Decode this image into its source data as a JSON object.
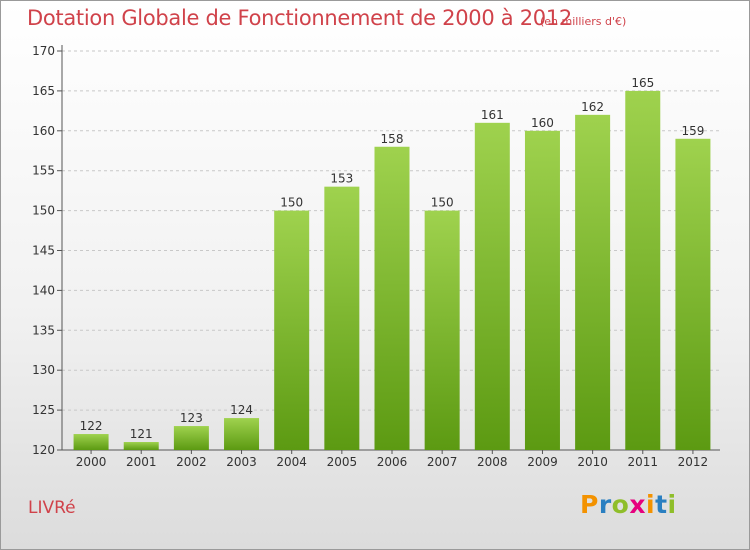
{
  "header": {
    "title": "Dotation Globale de Fonctionnement de 2000 à 2012",
    "unit": "(en milliers d'€)"
  },
  "commune": "LIVRé",
  "logo": {
    "letters": [
      "P",
      "r",
      "o",
      "x",
      "i",
      "t",
      "i"
    ],
    "colors": [
      "#f39200",
      "#2a7fc1",
      "#8fbe2a",
      "#e6007e",
      "#f39200",
      "#2a7fc1",
      "#8fbe2a"
    ]
  },
  "colors": {
    "bar_top": "#9fd24e",
    "bar_bottom": "#5c9a12",
    "accent_text": "#d0424a",
    "grid": "#c8c8c8"
  },
  "chart_data": {
    "type": "bar",
    "title": "Dotation Globale de Fonctionnement de 2000 à 2012",
    "subtitle": "(en milliers d'€)",
    "categories": [
      "2000",
      "2001",
      "2002",
      "2003",
      "2004",
      "2005",
      "2006",
      "2007",
      "2008",
      "2009",
      "2010",
      "2011",
      "2012"
    ],
    "values": [
      122,
      121,
      123,
      124,
      150,
      153,
      158,
      150,
      161,
      160,
      162,
      165,
      159
    ],
    "ylim": [
      120,
      170
    ],
    "yticks": [
      120,
      125,
      130,
      135,
      140,
      145,
      150,
      155,
      160,
      165,
      170
    ],
    "grid": true
  }
}
